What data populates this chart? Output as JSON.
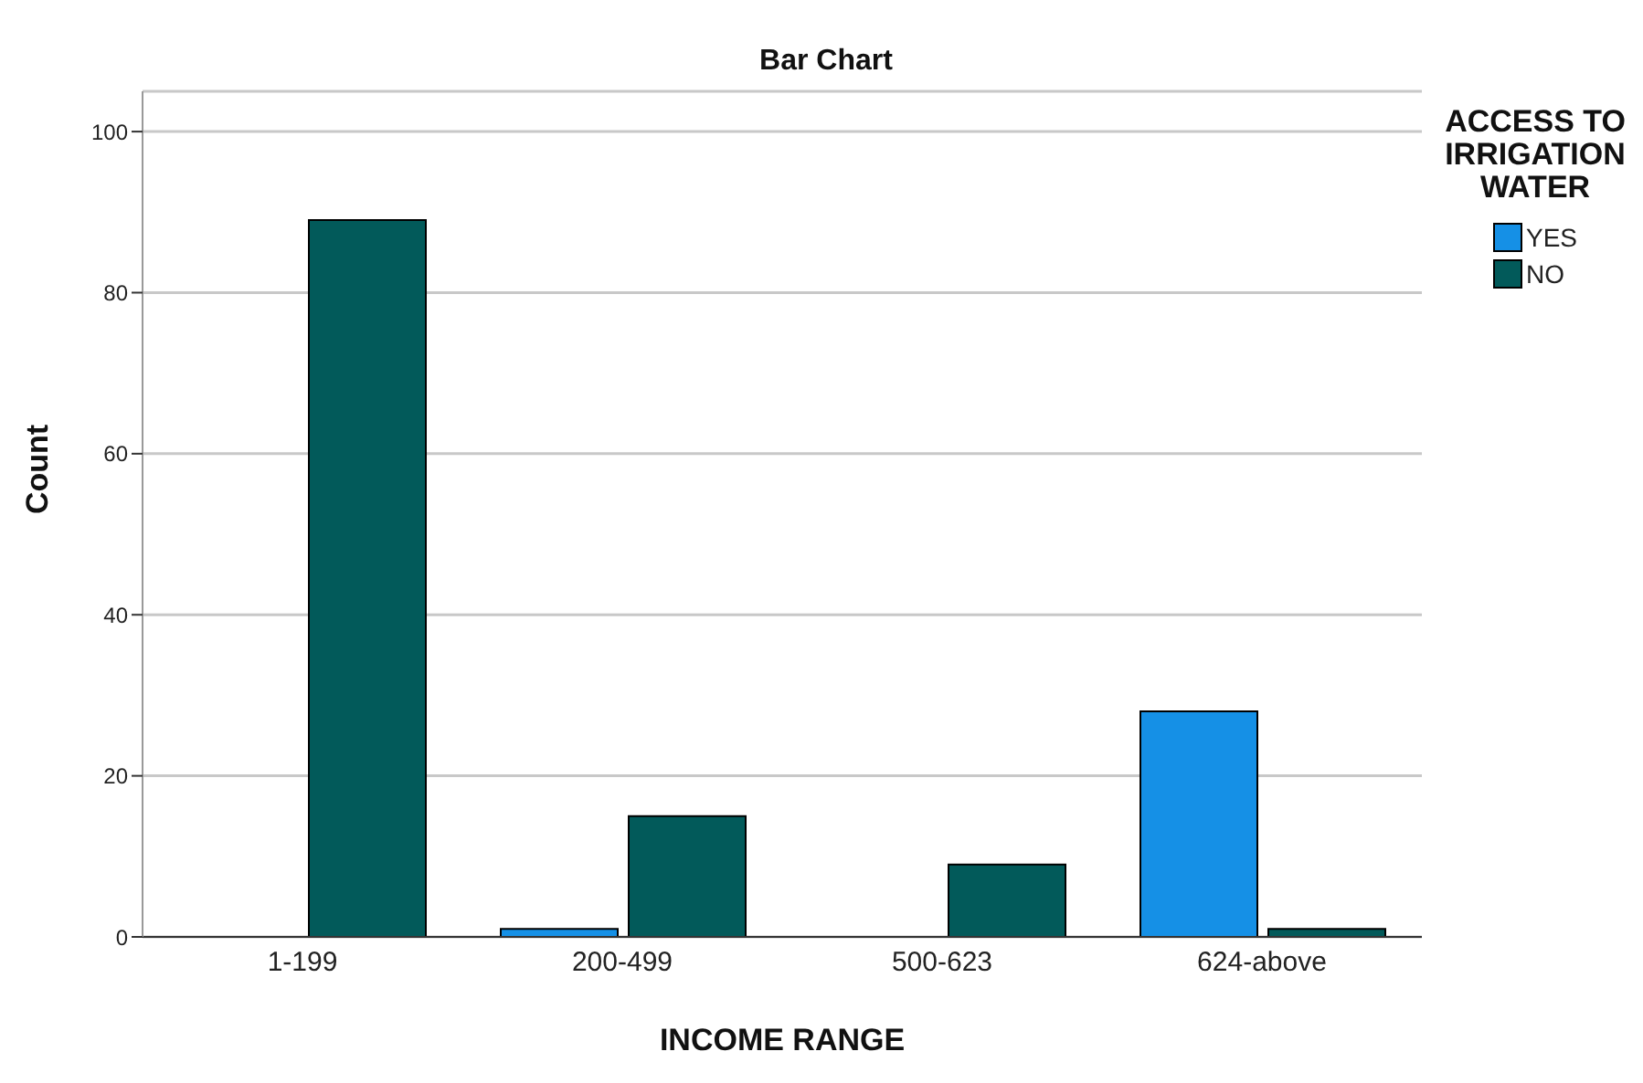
{
  "chart_data": {
    "type": "bar",
    "title": "Bar Chart",
    "xlabel": "INCOME RANGE",
    "ylabel": "Count",
    "legend_title": "ACCESS TO IRRIGATION WATER",
    "categories": [
      "1-199",
      "200-499",
      "500-623",
      "624-above"
    ],
    "series": [
      {
        "name": "YES",
        "color": "#1590e6",
        "values": [
          null,
          1,
          null,
          28
        ]
      },
      {
        "name": "NO",
        "color": "#025a5a",
        "values": [
          89,
          15,
          9,
          1
        ]
      }
    ],
    "ylim": [
      0,
      105
    ],
    "yticks": [
      0,
      20,
      40,
      60,
      80,
      100
    ],
    "grid": "y",
    "legend": "top right"
  }
}
